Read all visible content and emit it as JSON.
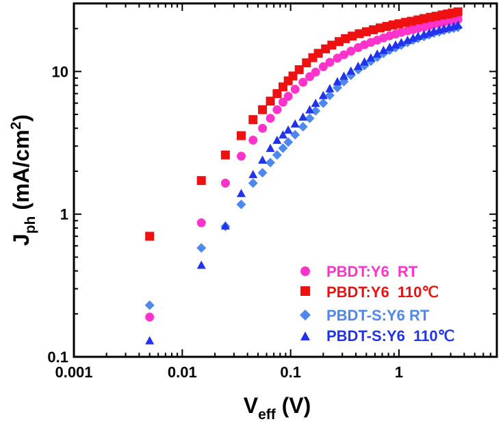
{
  "chart_data": {
    "type": "scatter",
    "xscale": "log",
    "yscale": "log",
    "xlim": [
      0.001,
      8
    ],
    "ylim": [
      0.1,
      30
    ],
    "grid": false,
    "legend_position": "bottom-right",
    "xlabel_main": "V",
    "xlabel_sub": "eff",
    "xlabel_unit": " (V)",
    "ylabel_main": "J",
    "ylabel_sub": "ph",
    "ylabel_unit_pre": " (mA/cm",
    "ylabel_unit_sup": "2",
    "ylabel_unit_post": ")",
    "xticks": [
      {
        "v": 0.001,
        "label": "0.001"
      },
      {
        "v": 0.01,
        "label": "0.01"
      },
      {
        "v": 0.1,
        "label": "0.1"
      },
      {
        "v": 1,
        "label": "1"
      }
    ],
    "yticks": [
      {
        "v": 0.1,
        "label": "0.1"
      },
      {
        "v": 1,
        "label": "1"
      },
      {
        "v": 10,
        "label": "10"
      }
    ],
    "series": [
      {
        "name": "PBDT:Y6  RT",
        "color": "#ff33cc",
        "marker": "circle",
        "x": [
          0.005,
          0.015,
          0.025,
          0.035,
          0.045,
          0.055,
          0.065,
          0.075,
          0.085,
          0.095,
          0.11,
          0.13,
          0.15,
          0.17,
          0.2,
          0.23,
          0.27,
          0.31,
          0.36,
          0.42,
          0.48,
          0.55,
          0.63,
          0.72,
          0.82,
          0.93,
          1.05,
          1.2,
          1.35,
          1.5,
          1.7,
          1.9,
          2.1,
          2.35,
          2.6,
          2.9,
          3.2,
          3.5
        ],
        "y": [
          0.19,
          0.87,
          1.65,
          2.55,
          3.3,
          4.0,
          4.7,
          5.4,
          6.1,
          6.7,
          7.5,
          8.4,
          9.2,
          9.9,
          10.8,
          11.6,
          12.4,
          13.1,
          13.9,
          14.7,
          15.4,
          16.0,
          16.6,
          17.2,
          17.8,
          18.3,
          18.8,
          19.3,
          19.7,
          20.1,
          20.5,
          21.0,
          21.4,
          21.8,
          22.2,
          22.6,
          22.9,
          23.2
        ]
      },
      {
        "name": "PBDT:Y6  110℃",
        "color": "#ee1111",
        "marker": "square",
        "x": [
          0.005,
          0.015,
          0.025,
          0.035,
          0.045,
          0.055,
          0.065,
          0.075,
          0.085,
          0.095,
          0.105,
          0.12,
          0.14,
          0.16,
          0.18,
          0.21,
          0.24,
          0.28,
          0.32,
          0.37,
          0.43,
          0.5,
          0.58,
          0.67,
          0.77,
          0.88,
          1.0,
          1.15,
          1.3,
          1.5,
          1.7,
          1.95,
          2.2,
          2.5,
          2.8,
          3.1,
          3.5
        ],
        "y": [
          0.7,
          1.72,
          2.6,
          3.55,
          4.6,
          5.4,
          6.2,
          7.0,
          7.8,
          8.6,
          9.3,
          10.3,
          11.5,
          12.5,
          13.4,
          14.4,
          15.3,
          16.2,
          17.0,
          17.7,
          18.4,
          19.0,
          19.6,
          20.2,
          20.7,
          21.2,
          21.6,
          22.1,
          22.5,
          23.0,
          23.5,
          24.0,
          24.4,
          24.9,
          25.3,
          25.7,
          26.2
        ]
      },
      {
        "name": "PBDT-S:Y6 RT",
        "color": "#4d88ee",
        "marker": "diamond",
        "x": [
          0.005,
          0.015,
          0.025,
          0.035,
          0.045,
          0.055,
          0.065,
          0.075,
          0.085,
          0.095,
          0.11,
          0.13,
          0.15,
          0.17,
          0.2,
          0.23,
          0.27,
          0.31,
          0.36,
          0.42,
          0.48,
          0.55,
          0.63,
          0.72,
          0.82,
          0.93,
          1.05,
          1.2,
          1.35,
          1.5,
          1.7,
          1.9,
          2.1,
          2.35,
          2.6,
          2.9,
          3.2,
          3.5
        ],
        "y": [
          0.23,
          0.58,
          0.82,
          1.17,
          1.65,
          1.95,
          2.3,
          2.6,
          2.9,
          3.2,
          3.6,
          4.1,
          4.7,
          5.3,
          6.0,
          6.8,
          7.7,
          8.5,
          9.4,
          10.3,
          11.0,
          11.8,
          12.6,
          13.4,
          14.1,
          14.7,
          15.3,
          16.0,
          16.6,
          17.1,
          17.6,
          18.1,
          18.6,
          19.0,
          19.4,
          19.8,
          20.1,
          20.4
        ]
      },
      {
        "name": "PBDT-S:Y6  110℃",
        "color": "#2233ee",
        "marker": "triangle",
        "x": [
          0.005,
          0.015,
          0.025,
          0.035,
          0.045,
          0.055,
          0.065,
          0.075,
          0.085,
          0.095,
          0.11,
          0.13,
          0.15,
          0.17,
          0.2,
          0.23,
          0.27,
          0.31,
          0.36,
          0.42,
          0.48,
          0.55,
          0.63,
          0.72,
          0.82,
          0.93,
          1.05,
          1.2,
          1.35,
          1.5,
          1.7,
          1.9,
          2.1,
          2.35,
          2.6,
          2.9,
          3.2,
          3.5
        ],
        "y": [
          0.13,
          0.44,
          0.83,
          1.4,
          1.9,
          2.4,
          2.9,
          3.3,
          3.6,
          3.9,
          4.3,
          4.8,
          5.4,
          6.0,
          6.8,
          7.6,
          8.5,
          9.3,
          10.1,
          10.9,
          11.7,
          12.5,
          13.3,
          14.1,
          14.8,
          15.4,
          16.0,
          16.6,
          17.2,
          17.7,
          18.2,
          18.7,
          19.2,
          19.6,
          20.0,
          20.4,
          20.8,
          21.2
        ]
      }
    ]
  }
}
